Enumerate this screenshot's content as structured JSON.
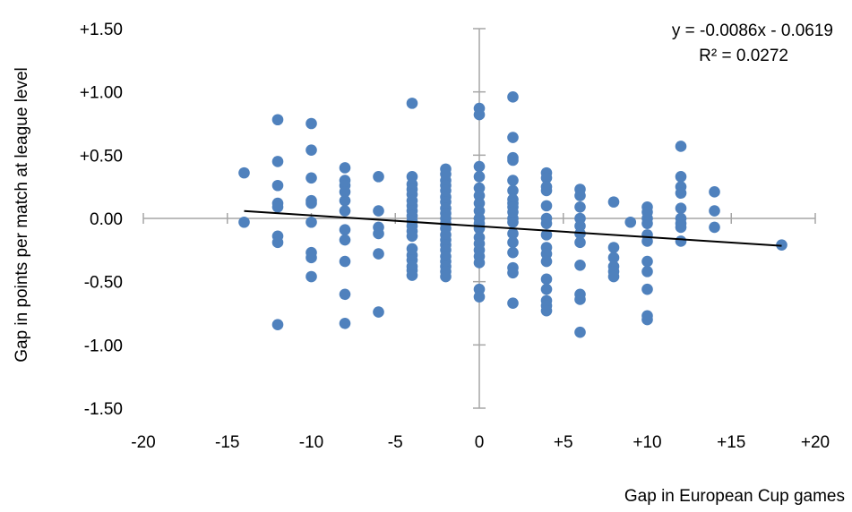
{
  "chart_data": {
    "type": "scatter",
    "title": "",
    "xlabel": "Gap in European Cup games",
    "ylabel": "Gap in points per match at league level",
    "xlim": [
      -20,
      20
    ],
    "ylim": [
      -1.5,
      1.5
    ],
    "x_ticks": [
      -20,
      -15,
      -10,
      -5,
      0,
      5,
      10,
      15,
      20
    ],
    "x_tick_labels": [
      "-20",
      "-15",
      "-10",
      "-5",
      "0",
      "+5",
      "+10",
      "+15",
      "+20"
    ],
    "y_ticks": [
      1.5,
      1.0,
      0.5,
      0.0,
      -0.5,
      -1.0,
      -1.5
    ],
    "y_tick_labels": [
      "+1.50",
      "+1.00",
      "+0.50",
      "0.00",
      "-0.50",
      "-1.00",
      "-1.50"
    ],
    "grid": false,
    "marker_color": "#4F81BD",
    "trendline_color": "#000000",
    "axis_color": "#A6A6A6",
    "trendline": {
      "slope": -0.0086,
      "intercept": -0.0619,
      "x_range": [
        -14,
        18
      ],
      "equation_label": "y = -0.0086x - 0.0619",
      "r2_label": "R² = 0.0272"
    },
    "points": [
      {
        "x": -14,
        "y": 0.36
      },
      {
        "x": -14,
        "y": -0.03
      },
      {
        "x": -12,
        "y": 0.78
      },
      {
        "x": -12,
        "y": 0.45
      },
      {
        "x": -12,
        "y": 0.26
      },
      {
        "x": -12,
        "y": 0.12
      },
      {
        "x": -12,
        "y": 0.09
      },
      {
        "x": -12,
        "y": -0.14
      },
      {
        "x": -12,
        "y": -0.19
      },
      {
        "x": -12,
        "y": -0.84
      },
      {
        "x": -10,
        "y": 0.75
      },
      {
        "x": -10,
        "y": 0.54
      },
      {
        "x": -10,
        "y": 0.32
      },
      {
        "x": -10,
        "y": 0.14
      },
      {
        "x": -10,
        "y": 0.12
      },
      {
        "x": -10,
        "y": -0.03
      },
      {
        "x": -10,
        "y": -0.27
      },
      {
        "x": -10,
        "y": -0.31
      },
      {
        "x": -10,
        "y": -0.46
      },
      {
        "x": -8,
        "y": 0.4
      },
      {
        "x": -8,
        "y": 0.3
      },
      {
        "x": -8,
        "y": 0.26
      },
      {
        "x": -8,
        "y": 0.21
      },
      {
        "x": -8,
        "y": 0.14
      },
      {
        "x": -8,
        "y": 0.06
      },
      {
        "x": -8,
        "y": -0.09
      },
      {
        "x": -8,
        "y": -0.17
      },
      {
        "x": -8,
        "y": -0.34
      },
      {
        "x": -8,
        "y": -0.6
      },
      {
        "x": -8,
        "y": -0.83
      },
      {
        "x": -6,
        "y": 0.33
      },
      {
        "x": -6,
        "y": 0.06
      },
      {
        "x": -6,
        "y": -0.07
      },
      {
        "x": -6,
        "y": -0.12
      },
      {
        "x": -6,
        "y": -0.28
      },
      {
        "x": -6,
        "y": -0.74
      },
      {
        "x": -4,
        "y": 0.91
      },
      {
        "x": -4,
        "y": 0.33
      },
      {
        "x": -4,
        "y": 0.27
      },
      {
        "x": -4,
        "y": 0.23
      },
      {
        "x": -4,
        "y": 0.19
      },
      {
        "x": -4,
        "y": 0.14
      },
      {
        "x": -4,
        "y": 0.1
      },
      {
        "x": -4,
        "y": 0.06
      },
      {
        "x": -4,
        "y": 0.02
      },
      {
        "x": -4,
        "y": -0.02
      },
      {
        "x": -4,
        "y": -0.06
      },
      {
        "x": -4,
        "y": -0.1
      },
      {
        "x": -4,
        "y": -0.14
      },
      {
        "x": -4,
        "y": -0.24
      },
      {
        "x": -4,
        "y": -0.29
      },
      {
        "x": -4,
        "y": -0.33
      },
      {
        "x": -4,
        "y": -0.38
      },
      {
        "x": -4,
        "y": -0.41
      },
      {
        "x": -4,
        "y": -0.45
      },
      {
        "x": -2,
        "y": 0.39
      },
      {
        "x": -2,
        "y": 0.35
      },
      {
        "x": -2,
        "y": 0.3
      },
      {
        "x": -2,
        "y": 0.26
      },
      {
        "x": -2,
        "y": 0.22
      },
      {
        "x": -2,
        "y": 0.17
      },
      {
        "x": -2,
        "y": 0.13
      },
      {
        "x": -2,
        "y": 0.08
      },
      {
        "x": -2,
        "y": 0.04
      },
      {
        "x": -2,
        "y": 0.0
      },
      {
        "x": -2,
        "y": -0.04
      },
      {
        "x": -2,
        "y": -0.08
      },
      {
        "x": -2,
        "y": -0.13
      },
      {
        "x": -2,
        "y": -0.17
      },
      {
        "x": -2,
        "y": -0.21
      },
      {
        "x": -2,
        "y": -0.25
      },
      {
        "x": -2,
        "y": -0.3
      },
      {
        "x": -2,
        "y": -0.34
      },
      {
        "x": -2,
        "y": -0.38
      },
      {
        "x": -2,
        "y": -0.42
      },
      {
        "x": -2,
        "y": -0.46
      },
      {
        "x": 0,
        "y": 0.87
      },
      {
        "x": 0,
        "y": 0.82
      },
      {
        "x": 0,
        "y": 0.41
      },
      {
        "x": 0,
        "y": 0.33
      },
      {
        "x": 0,
        "y": 0.24
      },
      {
        "x": 0,
        "y": 0.18
      },
      {
        "x": 0,
        "y": 0.12
      },
      {
        "x": 0,
        "y": 0.06
      },
      {
        "x": 0,
        "y": 0.0
      },
      {
        "x": 0,
        "y": -0.04
      },
      {
        "x": 0,
        "y": -0.08
      },
      {
        "x": 0,
        "y": -0.15
      },
      {
        "x": 0,
        "y": -0.2
      },
      {
        "x": 0,
        "y": -0.25
      },
      {
        "x": 0,
        "y": -0.3
      },
      {
        "x": 0,
        "y": -0.35
      },
      {
        "x": 0,
        "y": -0.56
      },
      {
        "x": 0,
        "y": -0.62
      },
      {
        "x": 2,
        "y": 0.96
      },
      {
        "x": 2,
        "y": 0.64
      },
      {
        "x": 2,
        "y": 0.48
      },
      {
        "x": 2,
        "y": 0.46
      },
      {
        "x": 2,
        "y": 0.3
      },
      {
        "x": 2,
        "y": 0.22
      },
      {
        "x": 2,
        "y": 0.15
      },
      {
        "x": 2,
        "y": 0.12
      },
      {
        "x": 2,
        "y": 0.09
      },
      {
        "x": 2,
        "y": 0.05
      },
      {
        "x": 2,
        "y": 0.0
      },
      {
        "x": 2,
        "y": -0.03
      },
      {
        "x": 2,
        "y": -0.12
      },
      {
        "x": 2,
        "y": -0.19
      },
      {
        "x": 2,
        "y": -0.27
      },
      {
        "x": 2,
        "y": -0.39
      },
      {
        "x": 2,
        "y": -0.43
      },
      {
        "x": 2,
        "y": -0.67
      },
      {
        "x": 4,
        "y": 0.36
      },
      {
        "x": 4,
        "y": 0.32
      },
      {
        "x": 4,
        "y": 0.25
      },
      {
        "x": 4,
        "y": 0.22
      },
      {
        "x": 4,
        "y": 0.1
      },
      {
        "x": 4,
        "y": 0.0
      },
      {
        "x": 4,
        "y": -0.04
      },
      {
        "x": 4,
        "y": -0.13
      },
      {
        "x": 4,
        "y": -0.23
      },
      {
        "x": 4,
        "y": -0.28
      },
      {
        "x": 4,
        "y": -0.34
      },
      {
        "x": 4,
        "y": -0.48
      },
      {
        "x": 4,
        "y": -0.56
      },
      {
        "x": 4,
        "y": -0.65
      },
      {
        "x": 4,
        "y": -0.69
      },
      {
        "x": 4,
        "y": -0.73
      },
      {
        "x": 6,
        "y": 0.23
      },
      {
        "x": 6,
        "y": 0.18
      },
      {
        "x": 6,
        "y": 0.09
      },
      {
        "x": 6,
        "y": 0.0
      },
      {
        "x": 6,
        "y": -0.06
      },
      {
        "x": 6,
        "y": -0.12
      },
      {
        "x": 6,
        "y": -0.19
      },
      {
        "x": 6,
        "y": -0.37
      },
      {
        "x": 6,
        "y": -0.6
      },
      {
        "x": 6,
        "y": -0.64
      },
      {
        "x": 6,
        "y": -0.9
      },
      {
        "x": 8,
        "y": 0.13
      },
      {
        "x": 8,
        "y": -0.23
      },
      {
        "x": 8,
        "y": -0.31
      },
      {
        "x": 8,
        "y": -0.38
      },
      {
        "x": 8,
        "y": -0.42
      },
      {
        "x": 8,
        "y": -0.46
      },
      {
        "x": 9,
        "y": -0.03
      },
      {
        "x": 10,
        "y": 0.09
      },
      {
        "x": 10,
        "y": 0.05
      },
      {
        "x": 10,
        "y": 0.0
      },
      {
        "x": 10,
        "y": -0.04
      },
      {
        "x": 10,
        "y": -0.13
      },
      {
        "x": 10,
        "y": -0.18
      },
      {
        "x": 10,
        "y": -0.34
      },
      {
        "x": 10,
        "y": -0.42
      },
      {
        "x": 10,
        "y": -0.56
      },
      {
        "x": 10,
        "y": -0.77
      },
      {
        "x": 10,
        "y": -0.8
      },
      {
        "x": 12,
        "y": 0.57
      },
      {
        "x": 12,
        "y": 0.33
      },
      {
        "x": 12,
        "y": 0.25
      },
      {
        "x": 12,
        "y": 0.2
      },
      {
        "x": 12,
        "y": 0.08
      },
      {
        "x": 12,
        "y": 0.0
      },
      {
        "x": 12,
        "y": -0.04
      },
      {
        "x": 12,
        "y": -0.07
      },
      {
        "x": 12,
        "y": -0.18
      },
      {
        "x": 14,
        "y": 0.21
      },
      {
        "x": 14,
        "y": 0.06
      },
      {
        "x": 14,
        "y": -0.07
      },
      {
        "x": 18,
        "y": -0.21
      }
    ]
  }
}
